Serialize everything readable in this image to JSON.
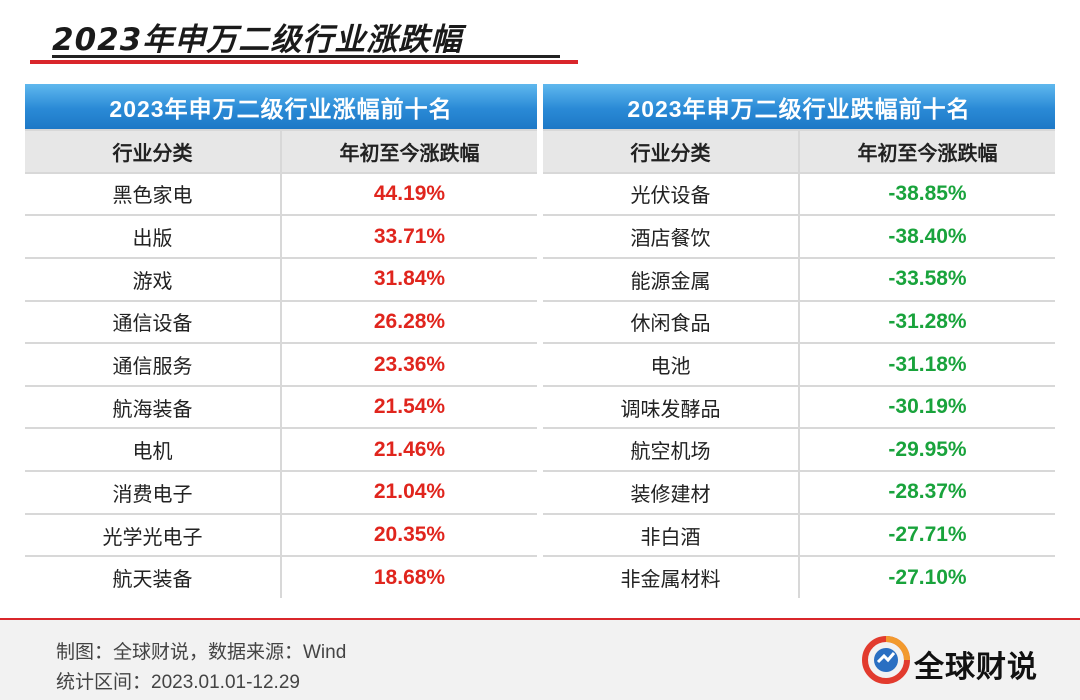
{
  "title": "2023年申万二级行业涨跌幅",
  "colors": {
    "accent_red": "#d9262b",
    "rise_red": "#e0251d",
    "fall_green": "#19a33c",
    "header_blue": "#2a8ad6"
  },
  "gainers": {
    "title": "2023年申万二级行业涨幅前十名",
    "col_industry": "行业分类",
    "col_change": "年初至今涨跌幅",
    "rows": [
      {
        "industry": "黑色家电",
        "change": "44.19%"
      },
      {
        "industry": "出版",
        "change": "33.71%"
      },
      {
        "industry": "游戏",
        "change": "31.84%"
      },
      {
        "industry": "通信设备",
        "change": "26.28%"
      },
      {
        "industry": "通信服务",
        "change": "23.36%"
      },
      {
        "industry": "航海装备",
        "change": "21.54%"
      },
      {
        "industry": "电机",
        "change": "21.46%"
      },
      {
        "industry": "消费电子",
        "change": "21.04%"
      },
      {
        "industry": "光学光电子",
        "change": "20.35%"
      },
      {
        "industry": "航天装备",
        "change": "18.68%"
      }
    ]
  },
  "losers": {
    "title": "2023年申万二级行业跌幅前十名",
    "col_industry": "行业分类",
    "col_change": "年初至今涨跌幅",
    "rows": [
      {
        "industry": "光伏设备",
        "change": "-38.85%"
      },
      {
        "industry": "酒店餐饮",
        "change": "-38.40%"
      },
      {
        "industry": "能源金属",
        "change": "-33.58%"
      },
      {
        "industry": "休闲食品",
        "change": "-31.28%"
      },
      {
        "industry": "电池",
        "change": "-31.18%"
      },
      {
        "industry": "调味发酵品",
        "change": "-30.19%"
      },
      {
        "industry": "航空机场",
        "change": "-29.95%"
      },
      {
        "industry": "装修建材",
        "change": "-28.37%"
      },
      {
        "industry": "非白酒",
        "change": "-27.71%"
      },
      {
        "industry": "非金属材料",
        "change": "-27.10%"
      }
    ]
  },
  "footer": {
    "credit": "制图：全球财说，数据来源：Wind",
    "period": "统计区间：2023.01.01-12.29",
    "brand": "全球财说",
    "logo_icon": "brand-logo-icon"
  }
}
